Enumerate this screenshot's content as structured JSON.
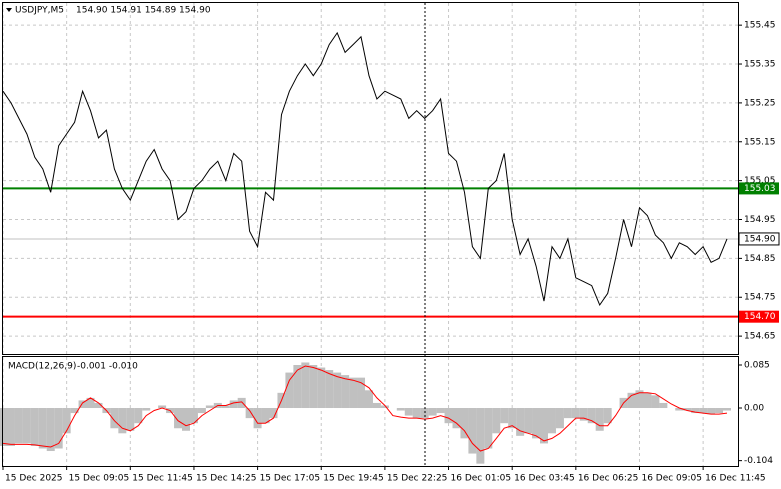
{
  "chart_data": [
    {
      "type": "line",
      "title": "USDJPY,M5",
      "subtitle": "154.90 154.91 154.89 154.90",
      "categories": [
        "15 Dec 2025",
        null,
        null,
        null,
        null,
        null,
        null,
        null,
        "15 Dec 09:05",
        null,
        null,
        null,
        null,
        null,
        null,
        null,
        "15 Dec 11:45",
        null,
        null,
        null,
        null,
        null,
        null,
        null,
        "15 Dec 14:25",
        null,
        null,
        null,
        null,
        null,
        null,
        null,
        "15 Dec 17:05",
        null,
        null,
        null,
        null,
        null,
        null,
        null,
        "15 Dec 19:45",
        null,
        null,
        null,
        null,
        null,
        null,
        null,
        "15 Dec 22:25",
        null,
        null,
        null,
        null,
        null,
        null,
        null,
        "16 Dec 01:05",
        null,
        null,
        null,
        null,
        null,
        null,
        null,
        "16 Dec 03:45",
        null,
        null,
        null,
        null,
        null,
        null,
        null,
        "16 Dec 06:25",
        null,
        null,
        null,
        null,
        null,
        null,
        null,
        "16 Dec 09:05",
        null,
        null,
        null,
        null,
        null,
        null,
        null,
        "16 Dec 11:45",
        null,
        null,
        null
      ],
      "color": "#000000",
      "values": [
        155.28,
        155.25,
        155.21,
        155.17,
        155.11,
        155.08,
        155.02,
        155.14,
        155.17,
        155.2,
        155.28,
        155.23,
        155.16,
        155.18,
        155.08,
        155.03,
        155.0,
        155.05,
        155.1,
        155.13,
        155.08,
        155.05,
        154.95,
        154.97,
        155.03,
        155.05,
        155.08,
        155.1,
        155.05,
        155.12,
        155.1,
        154.92,
        154.88,
        155.02,
        155.0,
        155.22,
        155.28,
        155.32,
        155.35,
        155.32,
        155.35,
        155.4,
        155.43,
        155.38,
        155.4,
        155.42,
        155.32,
        155.26,
        155.28,
        155.27,
        155.26,
        155.21,
        155.23,
        155.21,
        155.23,
        155.26,
        155.12,
        155.1,
        155.02,
        154.88,
        154.85,
        155.03,
        155.05,
        155.12,
        154.95,
        154.86,
        154.9,
        154.83,
        154.74,
        154.88,
        154.85,
        154.9,
        154.8,
        154.79,
        154.78,
        154.73,
        154.76,
        154.85,
        154.95,
        154.88,
        154.98,
        154.96,
        154.91,
        154.89,
        154.85,
        154.89,
        154.88,
        154.86,
        154.88,
        154.84,
        154.85,
        154.9
      ],
      "ylim": [
        154.604,
        155.507
      ],
      "yticks": [
        155.45,
        155.35,
        155.25,
        155.15,
        155.05,
        154.95,
        154.85,
        154.75,
        154.65
      ],
      "grid": true,
      "last_price": {
        "value": 154.9,
        "label": "154.90",
        "color": "#c0c0c0"
      },
      "levels": [
        {
          "value": 155.03,
          "label": "155.03",
          "color": "#008000"
        },
        {
          "value": 154.7,
          "label": "154.70",
          "color": "#ff0000"
        }
      ]
    },
    {
      "type": "macd",
      "title": "MACD(12,26,9)",
      "subtitle": "-0.001 -0.010",
      "series": [
        {
          "type": "bar",
          "color": "#c0c0c0",
          "values": [
            -0.075,
            -0.075,
            -0.07,
            -0.07,
            -0.075,
            -0.08,
            -0.085,
            -0.08,
            -0.05,
            -0.01,
            0.015,
            0.02,
            0.01,
            -0.01,
            -0.04,
            -0.05,
            -0.045,
            -0.03,
            -0.005,
            0,
            0.005,
            -0.01,
            -0.04,
            -0.045,
            -0.03,
            -0.01,
            0.005,
            0.01,
            0.005,
            0.015,
            0.02,
            -0.02,
            -0.04,
            -0.03,
            -0.02,
            0.03,
            0.07,
            0.085,
            0.09,
            0.085,
            0.08,
            0.075,
            0.07,
            0.065,
            0.06,
            0.06,
            0.035,
            0.01,
            0.005,
            0,
            -0.005,
            -0.015,
            -0.02,
            -0.02,
            -0.015,
            -0.01,
            -0.03,
            -0.04,
            -0.06,
            -0.09,
            -0.11,
            -0.08,
            -0.05,
            -0.03,
            -0.04,
            -0.055,
            -0.05,
            -0.06,
            -0.07,
            -0.05,
            -0.04,
            -0.02,
            -0.02,
            -0.025,
            -0.03,
            -0.045,
            -0.03,
            0,
            0.02,
            0.03,
            0.035,
            0.03,
            0.025,
            0.01,
            0,
            -0.005,
            -0.005,
            -0.01,
            -0.01,
            -0.012,
            -0.01,
            -0.005
          ]
        },
        {
          "type": "line",
          "color": "#ff0000",
          "values": [
            -0.07,
            -0.072,
            -0.072,
            -0.072,
            -0.073,
            -0.075,
            -0.077,
            -0.07,
            -0.045,
            -0.015,
            0.01,
            0.02,
            0.01,
            -0.005,
            -0.025,
            -0.04,
            -0.045,
            -0.035,
            -0.015,
            -0.005,
            0,
            -0.005,
            -0.025,
            -0.035,
            -0.03,
            -0.015,
            -0.005,
            0.005,
            0.005,
            0.01,
            0.012,
            -0.005,
            -0.03,
            -0.03,
            -0.02,
            0.015,
            0.055,
            0.075,
            0.083,
            0.08,
            0.075,
            0.068,
            0.062,
            0.058,
            0.055,
            0.05,
            0.04,
            0.02,
            0.005,
            -0.015,
            -0.018,
            -0.02,
            -0.02,
            -0.022,
            -0.02,
            -0.015,
            -0.02,
            -0.03,
            -0.045,
            -0.07,
            -0.085,
            -0.08,
            -0.06,
            -0.04,
            -0.035,
            -0.045,
            -0.05,
            -0.055,
            -0.065,
            -0.06,
            -0.05,
            -0.035,
            -0.02,
            -0.02,
            -0.025,
            -0.035,
            -0.035,
            -0.015,
            0.01,
            0.025,
            0.03,
            0.03,
            0.028,
            0.018,
            0.008,
            0,
            -0.005,
            -0.008,
            -0.01,
            -0.012,
            -0.012,
            -0.01
          ]
        }
      ],
      "ylim": [
        -0.1146,
        0.1008
      ],
      "yticks": [
        0.085,
        {
          "value": 0,
          "label": "0.00"
        },
        -0.104
      ]
    }
  ]
}
